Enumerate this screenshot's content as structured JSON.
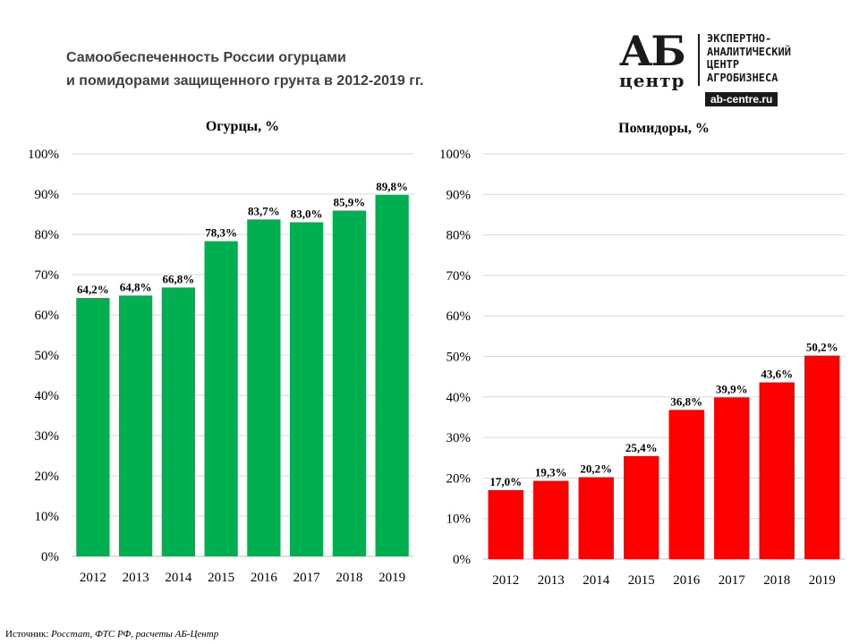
{
  "title": {
    "line1": "Самообеспеченность  России огурцами",
    "line2": "и помидорами защищенного грунта  в 2012-2019 гг."
  },
  "logo": {
    "ab": "АБ",
    "centr": "центр",
    "lines": [
      "ЭКСПЕРТНО-",
      "АНАЛИТИЧЕСКИЙ",
      "ЦЕНТР",
      "АГРОБИЗНЕСА"
    ],
    "site": "ab-centre.ru"
  },
  "source": {
    "label": "Источник:",
    "text": "Росстат, ФТС РФ, расчеты АБ-Центр"
  },
  "chart_data": [
    {
      "type": "bar",
      "title": "Огурцы, %",
      "categories": [
        "2012",
        "2013",
        "2014",
        "2015",
        "2016",
        "2017",
        "2018",
        "2019"
      ],
      "values": [
        64.2,
        64.8,
        66.8,
        78.3,
        83.7,
        83.0,
        85.9,
        89.8
      ],
      "labels": [
        "64,2%",
        "64,8%",
        "66,8%",
        "78,3%",
        "83,7%",
        "83,0%",
        "85,9%",
        "89,8%"
      ],
      "ylim": [
        0,
        100
      ],
      "yticks": [
        "0%",
        "10%",
        "20%",
        "30%",
        "40%",
        "50%",
        "60%",
        "70%",
        "80%",
        "90%",
        "100%"
      ],
      "color": "#00b050",
      "grid": true
    },
    {
      "type": "bar",
      "title": "Помидоры, %",
      "categories": [
        "2012",
        "2013",
        "2014",
        "2015",
        "2016",
        "2017",
        "2018",
        "2019"
      ],
      "values": [
        17.0,
        19.3,
        20.2,
        25.4,
        36.8,
        39.9,
        43.6,
        50.2
      ],
      "labels": [
        "17,0%",
        "19,3%",
        "20,2%",
        "25,4%",
        "36,8%",
        "39,9%",
        "43,6%",
        "50,2%"
      ],
      "ylim": [
        0,
        100
      ],
      "yticks": [
        "0%",
        "10%",
        "20%",
        "30%",
        "40%",
        "50%",
        "60%",
        "70%",
        "80%",
        "90%",
        "100%"
      ],
      "color": "#ff0000",
      "grid": true
    }
  ]
}
